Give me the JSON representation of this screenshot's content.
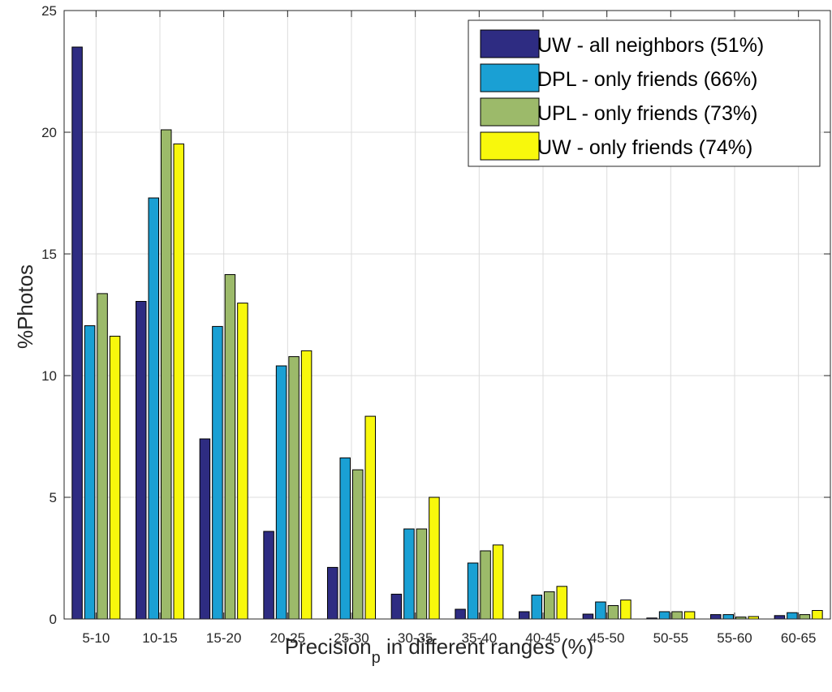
{
  "chart_data": {
    "type": "bar",
    "title": "",
    "xlabel": "Precision",
    "xlabel_subscript": "p",
    "xlabel_rest": " in different ranges (%)",
    "ylabel": "%Photos",
    "ylim": [
      0,
      25
    ],
    "yticks": [
      "0",
      "5",
      "10",
      "15",
      "20",
      "25"
    ],
    "grid": true,
    "legend_position": "top-right",
    "categories": [
      "5-10",
      "10-15",
      "15-20",
      "20-25",
      "25-30",
      "30-35",
      "35-40",
      "40-45",
      "45-50",
      "50-55",
      "55-60",
      "60-65"
    ],
    "series": [
      {
        "name": "UW - all neighbors (51%)",
        "color": "#2e2c82",
        "values": [
          23.5,
          13.05,
          7.4,
          3.6,
          2.12,
          1.02,
          0.4,
          0.3,
          0.2,
          0.04,
          0.18,
          0.14
        ]
      },
      {
        "name": "DPL - only friends (66%)",
        "color": "#1aa0d4",
        "values": [
          12.05,
          17.3,
          12.02,
          10.4,
          6.62,
          3.7,
          2.3,
          0.98,
          0.7,
          0.3,
          0.18,
          0.26
        ]
      },
      {
        "name": "UPL - only friends (73%)",
        "color": "#9cba6a",
        "values": [
          13.37,
          20.1,
          14.15,
          10.78,
          6.13,
          3.7,
          2.8,
          1.12,
          0.55,
          0.3,
          0.08,
          0.18
        ]
      },
      {
        "name": "UW - only friends (74%)",
        "color": "#f8f80c",
        "values": [
          11.62,
          19.52,
          12.98,
          11.02,
          8.33,
          5.0,
          3.04,
          1.34,
          0.78,
          0.3,
          0.1,
          0.35
        ]
      }
    ]
  }
}
